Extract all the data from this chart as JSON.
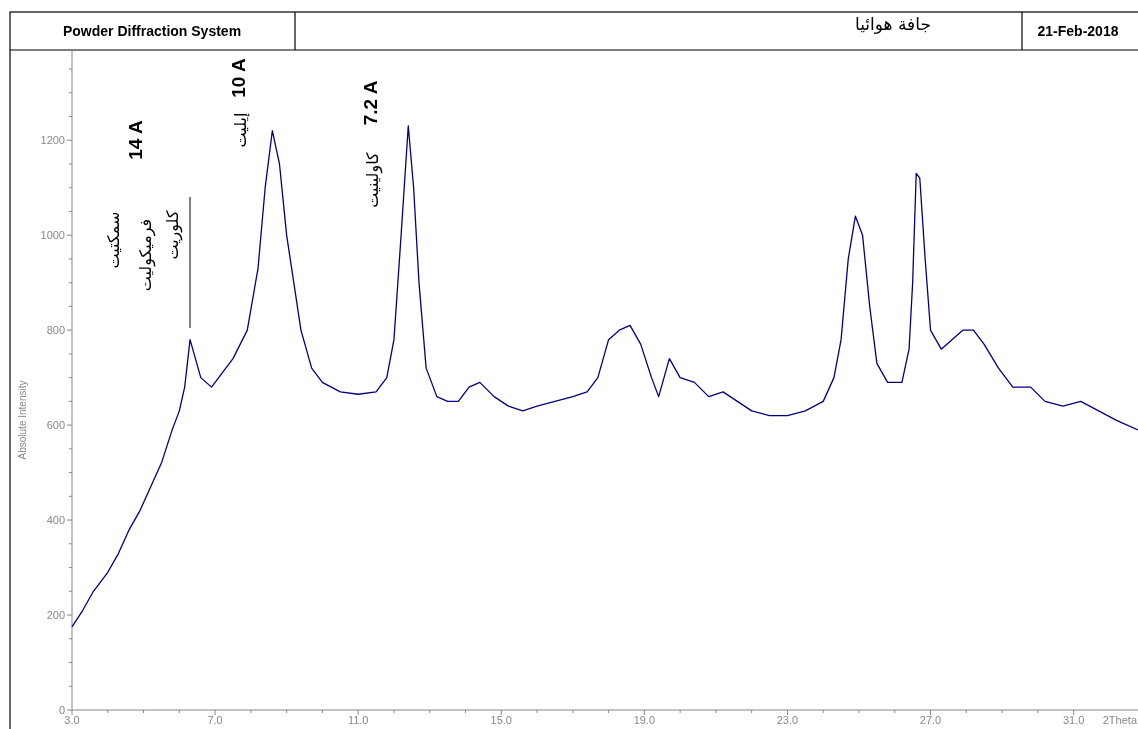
{
  "chart_data": {
    "type": "line",
    "title": "جافة هوائيا",
    "xlabel": "2Theta",
    "ylabel": "Absolute Intensity",
    "xlim": [
      3,
      32.8
    ],
    "ylim": [
      0,
      1390
    ],
    "xticks": [
      {
        "value": 3,
        "label": "3.0"
      },
      {
        "value": 7,
        "label": "7.0"
      },
      {
        "value": 11,
        "label": "11.0"
      },
      {
        "value": 15,
        "label": "15.0"
      },
      {
        "value": 19,
        "label": "19.0"
      },
      {
        "value": 23,
        "label": "23.0"
      },
      {
        "value": 27,
        "label": "27.0"
      },
      {
        "value": 31,
        "label": "31.0"
      }
    ],
    "yticks": [
      0,
      200,
      400,
      600,
      800,
      1000,
      1200
    ],
    "grid": false,
    "marker": "none",
    "line_style": "solid",
    "series": [
      {
        "color": "#000080",
        "x": [
          3.0,
          3.3,
          3.6,
          4.0,
          4.3,
          4.6,
          4.9,
          5.2,
          5.5,
          5.8,
          6.0,
          6.15,
          6.3,
          6.45,
          6.6,
          6.9,
          7.2,
          7.5,
          7.9,
          8.2,
          8.4,
          8.6,
          8.8,
          9.0,
          9.2,
          9.4,
          9.7,
          10.0,
          10.5,
          11.0,
          11.5,
          11.8,
          12.0,
          12.2,
          12.4,
          12.55,
          12.7,
          12.9,
          13.2,
          13.5,
          13.8,
          14.1,
          14.4,
          14.8,
          15.2,
          15.6,
          16.0,
          16.5,
          17.0,
          17.4,
          17.7,
          18.0,
          18.3,
          18.6,
          18.9,
          19.2,
          19.4,
          19.7,
          20.0,
          20.4,
          20.8,
          21.2,
          21.6,
          22.0,
          22.5,
          23.0,
          23.5,
          24.0,
          24.3,
          24.5,
          24.7,
          24.9,
          25.1,
          25.3,
          25.5,
          25.8,
          26.2,
          26.4,
          26.5,
          26.6,
          26.7,
          26.85,
          27.0,
          27.3,
          27.6,
          27.9,
          28.2,
          28.5,
          28.9,
          29.3,
          29.8,
          30.2,
          30.7,
          31.2,
          31.7,
          32.2,
          32.8
        ],
        "values": [
          175,
          210,
          250,
          290,
          330,
          380,
          420,
          470,
          520,
          590,
          630,
          680,
          780,
          740,
          700,
          680,
          710,
          740,
          800,
          930,
          1100,
          1220,
          1150,
          1000,
          900,
          800,
          720,
          690,
          670,
          665,
          670,
          700,
          780,
          1000,
          1230,
          1100,
          900,
          720,
          660,
          650,
          650,
          680,
          690,
          660,
          640,
          630,
          640,
          650,
          660,
          670,
          700,
          780,
          800,
          810,
          770,
          700,
          660,
          740,
          700,
          690,
          660,
          670,
          650,
          630,
          620,
          620,
          630,
          650,
          700,
          780,
          950,
          1040,
          1000,
          850,
          730,
          690,
          690,
          760,
          900,
          1130,
          1120,
          950,
          800,
          760,
          780,
          800,
          800,
          770,
          720,
          680,
          680,
          650,
          640,
          650,
          630,
          610,
          590
        ]
      }
    ],
    "annotations": [
      "14 A",
      "10 A",
      "7.2 A",
      "سمكتيت",
      "فرميكوليت",
      "كلوريت",
      "إيليت",
      "كاولينيت",
      "Powder Diffraction System",
      "21-Feb-2018"
    ]
  }
}
